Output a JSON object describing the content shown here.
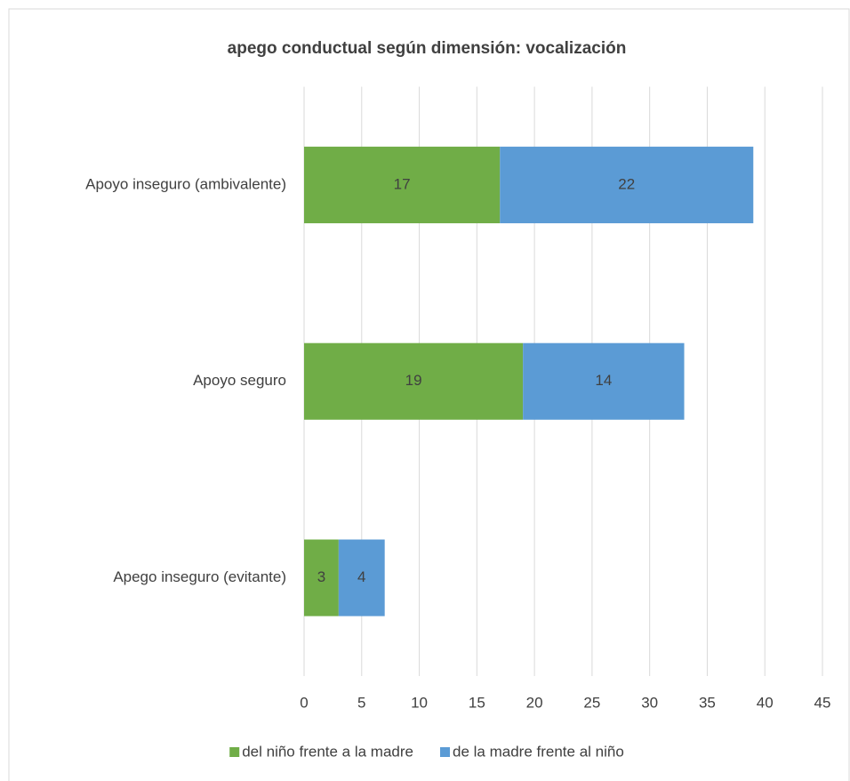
{
  "chart_data": {
    "type": "bar",
    "orientation": "horizontal",
    "stacked": true,
    "title": "apego conductual según dimensión: vocalización",
    "categories": [
      "Apoyo inseguro (ambivalente)",
      "Apoyo seguro",
      "Apego inseguro (evitante)"
    ],
    "series": [
      {
        "name": "del niño frente a la madre",
        "color": "#70ad47",
        "values": [
          17,
          19,
          3
        ]
      },
      {
        "name": "de la madre frente al niño",
        "color": "#5b9bd5",
        "values": [
          22,
          14,
          4
        ]
      }
    ],
    "xlim": [
      0,
      45
    ],
    "xticks": [
      0,
      5,
      10,
      15,
      20,
      25,
      30,
      35,
      40,
      45
    ],
    "grid": true,
    "legend": "bottom"
  }
}
